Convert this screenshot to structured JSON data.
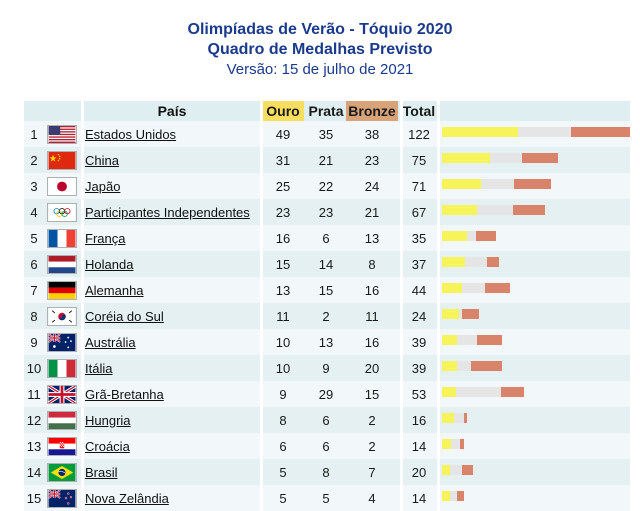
{
  "title": {
    "line1": "Olimpíadas de Verão - Tóquio 2020",
    "line2": "Quadro de Medalhas Previsto",
    "line3": "Versão: 15 de julho de 2021"
  },
  "headers": {
    "country": "País",
    "gold": "Ouro",
    "silver": "Prata",
    "bronze": "Bronze",
    "total": "Total"
  },
  "colors": {
    "gold": "#f7f35a",
    "silver": "#e5e5e5",
    "bronze": "#d9836a"
  },
  "rows": [
    {
      "rank": "1",
      "country": "Estados Unidos",
      "flag": "usa-flag-icon",
      "gold": "49",
      "silver": "35",
      "bronze": "38",
      "total": "122"
    },
    {
      "rank": "2",
      "country": "China",
      "flag": "china-flag-icon",
      "gold": "31",
      "silver": "21",
      "bronze": "23",
      "total": "75"
    },
    {
      "rank": "3",
      "country": "Japão",
      "flag": "japan-flag-icon",
      "gold": "25",
      "silver": "22",
      "bronze": "24",
      "total": "71"
    },
    {
      "rank": "4",
      "country": "Participantes Independentes",
      "flag": "olympic-rings-flag-icon",
      "gold": "23",
      "silver": "23",
      "bronze": "21",
      "total": "67"
    },
    {
      "rank": "5",
      "country": "França",
      "flag": "france-flag-icon",
      "gold": "16",
      "silver": "6",
      "bronze": "13",
      "total": "35"
    },
    {
      "rank": "6",
      "country": "Holanda",
      "flag": "netherlands-flag-icon",
      "gold": "15",
      "silver": "14",
      "bronze": "8",
      "total": "37"
    },
    {
      "rank": "7",
      "country": "Alemanha",
      "flag": "germany-flag-icon",
      "gold": "13",
      "silver": "15",
      "bronze": "16",
      "total": "44"
    },
    {
      "rank": "8",
      "country": "Coréia do Sul",
      "flag": "south-korea-flag-icon",
      "gold": "11",
      "silver": "2",
      "bronze": "11",
      "total": "24"
    },
    {
      "rank": "9",
      "country": "Austrália",
      "flag": "australia-flag-icon",
      "gold": "10",
      "silver": "13",
      "bronze": "16",
      "total": "39"
    },
    {
      "rank": "10",
      "country": "Itália",
      "flag": "italy-flag-icon",
      "gold": "10",
      "silver": "9",
      "bronze": "20",
      "total": "39"
    },
    {
      "rank": "11",
      "country": "Grã-Bretanha",
      "flag": "uk-flag-icon",
      "gold": "9",
      "silver": "29",
      "bronze": "15",
      "total": "53"
    },
    {
      "rank": "12",
      "country": "Hungria",
      "flag": "hungary-flag-icon",
      "gold": "8",
      "silver": "6",
      "bronze": "2",
      "total": "16"
    },
    {
      "rank": "13",
      "country": "Croácia",
      "flag": "croatia-flag-icon",
      "gold": "6",
      "silver": "6",
      "bronze": "2",
      "total": "14"
    },
    {
      "rank": "14",
      "country": "Brasil",
      "flag": "brazil-flag-icon",
      "gold": "5",
      "silver": "8",
      "bronze": "7",
      "total": "20"
    },
    {
      "rank": "15",
      "country": "Nova Zelândia",
      "flag": "new-zealand-flag-icon",
      "gold": "5",
      "silver": "5",
      "bronze": "4",
      "total": "14"
    }
  ]
}
